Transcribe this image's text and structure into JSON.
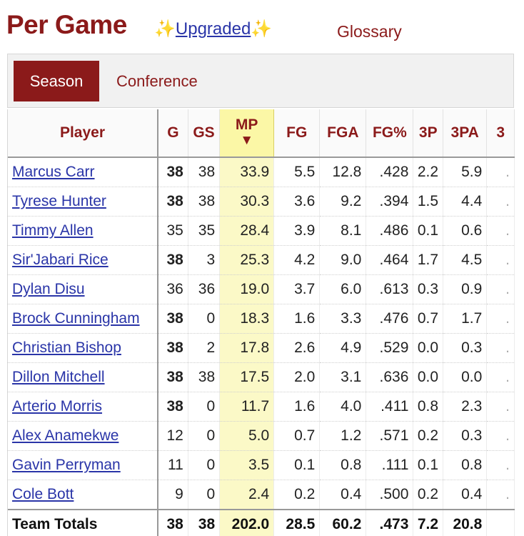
{
  "header": {
    "title": "Per Game",
    "upgraded_prefix": "✨",
    "upgraded_label": "Upgraded",
    "upgraded_suffix": "✨",
    "glossary_label": "Glossary"
  },
  "tabs": [
    {
      "label": "Season",
      "selected": true
    },
    {
      "label": "Conference",
      "selected": false
    }
  ],
  "colors": {
    "accent": "#8b1a1a",
    "link": "#2a35a8",
    "sort_highlight": "#fbf7a6"
  },
  "table": {
    "headers": [
      "Player",
      "G",
      "GS",
      "MP",
      "FG",
      "FGA",
      "FG%",
      "3P",
      "3PA",
      "3"
    ],
    "sort_indicator": "▼",
    "rows": [
      [
        "Marcus Carr",
        "38",
        "38",
        "33.9",
        "5.5",
        "12.8",
        ".428",
        "2.2",
        "5.9",
        "."
      ],
      [
        "Tyrese Hunter",
        "38",
        "38",
        "30.3",
        "3.6",
        "9.2",
        ".394",
        "1.5",
        "4.4",
        "."
      ],
      [
        "Timmy Allen",
        "35",
        "35",
        "28.4",
        "3.9",
        "8.1",
        ".486",
        "0.1",
        "0.6",
        "."
      ],
      [
        "Sir'Jabari Rice",
        "38",
        "3",
        "25.3",
        "4.2",
        "9.0",
        ".464",
        "1.7",
        "4.5",
        "."
      ],
      [
        "Dylan Disu",
        "36",
        "36",
        "19.0",
        "3.7",
        "6.0",
        ".613",
        "0.3",
        "0.9",
        "."
      ],
      [
        "Brock Cunningham",
        "38",
        "0",
        "18.3",
        "1.6",
        "3.3",
        ".476",
        "0.7",
        "1.7",
        "."
      ],
      [
        "Christian Bishop",
        "38",
        "2",
        "17.8",
        "2.6",
        "4.9",
        ".529",
        "0.0",
        "0.3",
        "."
      ],
      [
        "Dillon Mitchell",
        "38",
        "38",
        "17.5",
        "2.0",
        "3.1",
        ".636",
        "0.0",
        "0.0",
        "."
      ],
      [
        "Arterio Morris",
        "38",
        "0",
        "11.7",
        "1.6",
        "4.0",
        ".411",
        "0.8",
        "2.3",
        "."
      ],
      [
        "Alex Anamekwe",
        "12",
        "0",
        "5.0",
        "0.7",
        "1.2",
        ".571",
        "0.2",
        "0.3",
        "."
      ],
      [
        "Gavin Perryman",
        "11",
        "0",
        "3.5",
        "0.1",
        "0.8",
        ".111",
        "0.1",
        "0.8",
        "."
      ],
      [
        "Cole Bott",
        "9",
        "0",
        "2.4",
        "0.2",
        "0.4",
        ".500",
        "0.2",
        "0.4",
        "."
      ]
    ],
    "bold_g_rows": [
      0,
      1,
      3,
      5,
      6,
      7,
      8
    ],
    "totals": [
      "Team Totals",
      "38",
      "38",
      "202.0",
      "28.5",
      "60.2",
      ".473",
      "7.2",
      "20.8",
      ""
    ]
  }
}
